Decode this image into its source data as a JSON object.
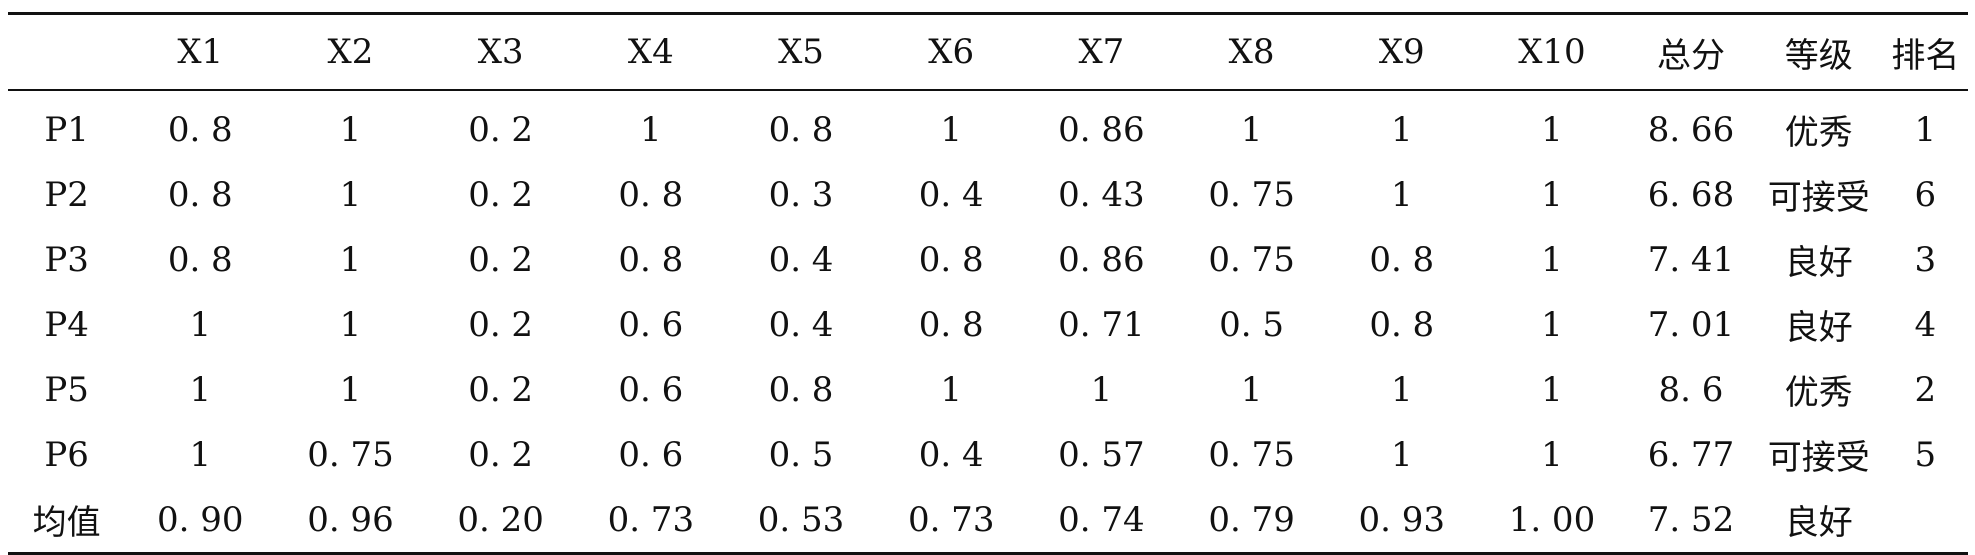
{
  "table": {
    "headers": [
      "",
      "X1",
      "X2",
      "X3",
      "X4",
      "X5",
      "X6",
      "X7",
      "X8",
      "X9",
      "X10",
      "总分",
      "等级",
      "排名"
    ],
    "rows": [
      [
        "P1",
        "0. 8",
        "1",
        "0. 2",
        "1",
        "0. 8",
        "1",
        "0. 86",
        "1",
        "1",
        "1",
        "8. 66",
        "优秀",
        "1"
      ],
      [
        "P2",
        "0. 8",
        "1",
        "0. 2",
        "0. 8",
        "0. 3",
        "0. 4",
        "0. 43",
        "0. 75",
        "1",
        "1",
        "6. 68",
        "可接受",
        "6"
      ],
      [
        "P3",
        "0. 8",
        "1",
        "0. 2",
        "0. 8",
        "0. 4",
        "0. 8",
        "0. 86",
        "0. 75",
        "0. 8",
        "1",
        "7. 41",
        "良好",
        "3"
      ],
      [
        "P4",
        "1",
        "1",
        "0. 2",
        "0. 6",
        "0. 4",
        "0. 8",
        "0. 71",
        "0. 5",
        "0. 8",
        "1",
        "7. 01",
        "良好",
        "4"
      ],
      [
        "P5",
        "1",
        "1",
        "0. 2",
        "0. 6",
        "0. 8",
        "1",
        "1",
        "1",
        "1",
        "1",
        "8. 6",
        "优秀",
        "2"
      ],
      [
        "P6",
        "1",
        "0. 75",
        "0. 2",
        "0. 6",
        "0. 5",
        "0. 4",
        "0. 57",
        "0. 75",
        "1",
        "1",
        "6. 77",
        "可接受",
        "5"
      ],
      [
        "均值",
        "0. 90",
        "0. 96",
        "0. 20",
        "0. 73",
        "0. 53",
        "0. 73",
        "0. 74",
        "0. 79",
        "0. 93",
        "1. 00",
        "7. 52",
        "良好",
        ""
      ]
    ]
  }
}
